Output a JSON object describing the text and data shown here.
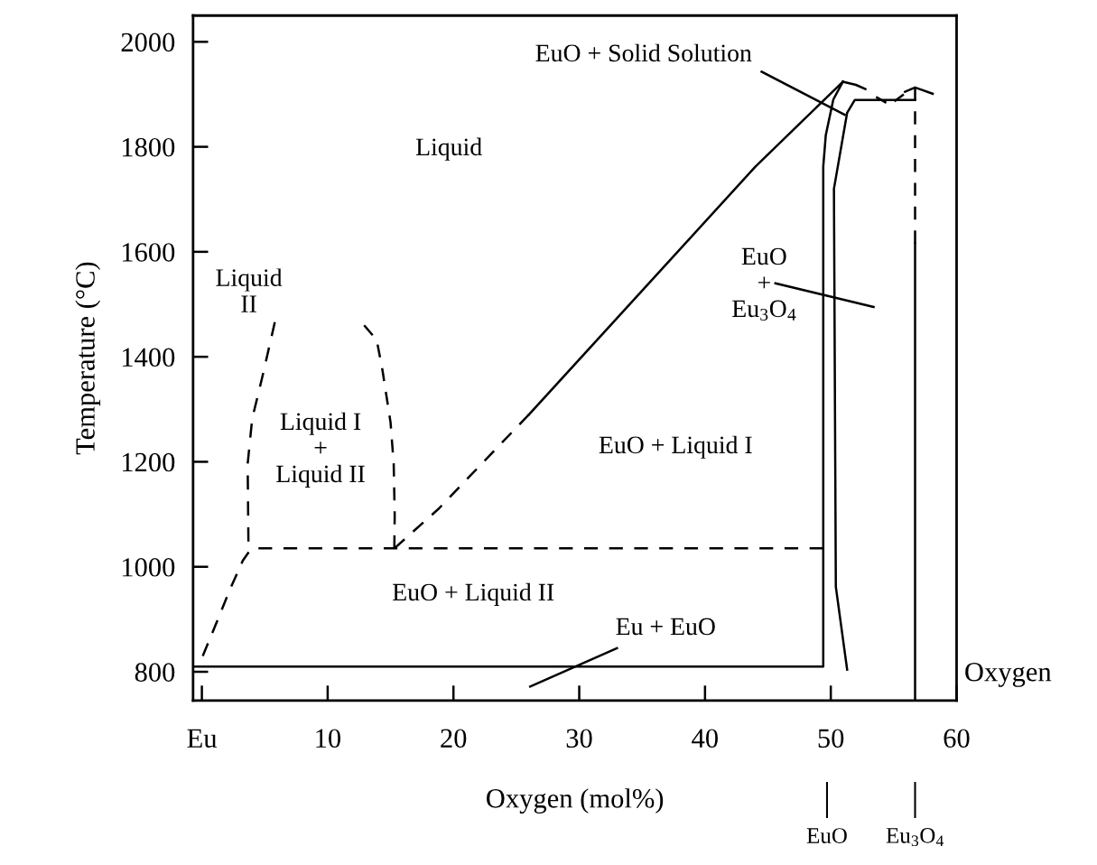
{
  "chart_data": {
    "type": "line",
    "xlabel": "Oxygen (mol%)",
    "ylabel": "Temperature (°C)",
    "xlim": [
      -0.7,
      60
    ],
    "ylim": [
      745,
      2050
    ],
    "xticks": [
      {
        "value": 0,
        "label": "Eu"
      },
      10,
      20,
      30,
      40,
      50,
      60
    ],
    "yticks": [
      800,
      1000,
      1200,
      1400,
      1600,
      1800,
      2000
    ],
    "color": "#000000",
    "marker": "none",
    "series": [
      {
        "line_style": "solid",
        "x": [
          -0.7,
          49.4,
          49.4,
          49.6,
          50.2,
          50.96
        ],
        "values": [
          810,
          810,
          1762,
          1822,
          1890,
          1924
        ]
      },
      {
        "line_style": "solid",
        "x": [
          51.3,
          50.4,
          50.25,
          51.3,
          51.9,
          56.7
        ],
        "values": [
          804,
          962,
          1720,
          1865,
          1889,
          1889
        ]
      },
      {
        "line_style": "solid",
        "x": [
          26,
          44,
          50.96
        ],
        "values": [
          1290,
          1762,
          1924
        ]
      },
      {
        "line_style": "dashed",
        "x": [
          15.3,
          18.8,
          26
        ],
        "values": [
          1035,
          1110,
          1290
        ]
      },
      {
        "line_style": "dashed",
        "x": [
          0.07,
          1.07,
          2.2,
          3.26,
          3.9,
          4.4,
          49.4
        ],
        "values": [
          830,
          888,
          955,
          1012,
          1034,
          1035,
          1035
        ]
      },
      {
        "line_style": "dashed",
        "x": [
          5.8,
          4.8,
          4.0,
          3.64,
          3.7
        ],
        "values": [
          1466,
          1361,
          1282,
          1196,
          1048
        ]
      },
      {
        "line_style": "dashed",
        "x": [
          12.9,
          13.9,
          14.36,
          15.0,
          15.25,
          15.33,
          15.3
        ],
        "values": [
          1460,
          1432,
          1374,
          1275,
          1196,
          1098,
          1035
        ]
      },
      {
        "line_style": "solid",
        "x": [
          50.96,
          52.0,
          52.75
        ],
        "values": [
          1924,
          1918,
          1910
        ]
      },
      {
        "line_style": "dashed",
        "x": [
          53.6,
          54.7,
          55.8
        ],
        "values": [
          1895,
          1880,
          1900
        ]
      },
      {
        "line_style": "solid",
        "x": [
          55.9,
          56.7,
          58.1
        ],
        "values": [
          1905,
          1913,
          1901
        ]
      },
      {
        "line_style": "dashed",
        "x": [
          56.7,
          56.7
        ],
        "values": [
          1913,
          1616
        ]
      },
      {
        "line_style": "solid",
        "x": [
          56.7,
          56.7
        ],
        "values": [
          1616,
          745
        ]
      },
      {
        "line_style": "solid",
        "x": [
          44.5,
          51.1
        ],
        "values": [
          1943,
          1861
        ]
      },
      {
        "line_style": "solid",
        "x": [
          45.6,
          53.4
        ],
        "values": [
          1540,
          1495
        ]
      },
      {
        "line_style": "solid",
        "x": [
          26.1,
          33
        ],
        "values": [
          772,
          845
        ]
      }
    ],
    "annotations": [
      "EuO + Solid Solution",
      "Liquid",
      "Liquid\nII",
      "Liquid I\n+\nLiquid II",
      "EuO + Liquid I",
      "EuO\n+\nEu$_{3}$O$_{4}$",
      "EuO + Liquid II",
      "Eu + EuO",
      {
        "text": "EuO",
        "x": 49.7
      },
      {
        "text": "Eu$_{3}$O$_{4}$",
        "x": 56.7
      },
      "Oxygen"
    ]
  }
}
